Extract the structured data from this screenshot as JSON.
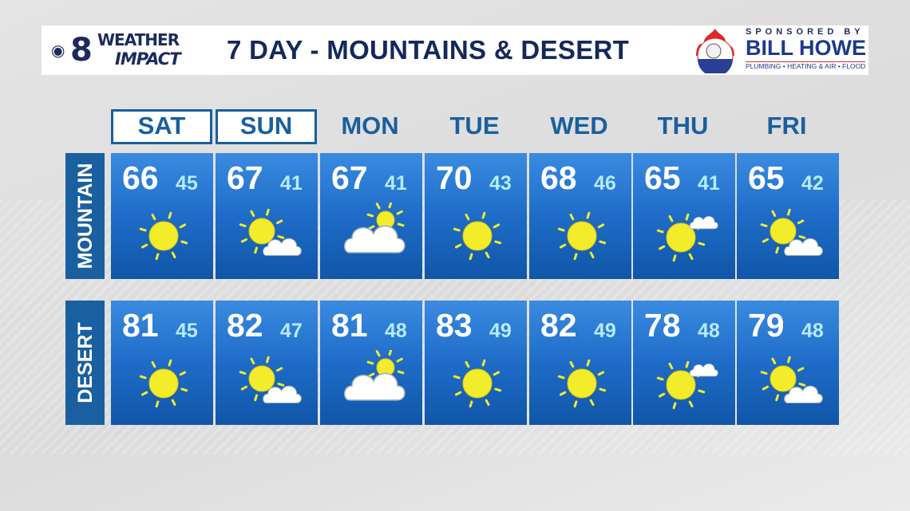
{
  "header": {
    "logo_text": [
      "8",
      "WEATHER",
      "IMPACT"
    ],
    "title": "7 DAY - MOUNTAINS & DESERT",
    "sponsor": {
      "label": "SPONSORED BY",
      "name": "BILL HOWE",
      "services": "PLUMBING • HEATING & AIR • FLOOD"
    }
  },
  "days": [
    {
      "label": "SAT",
      "selected": true
    },
    {
      "label": "SUN",
      "selected": true
    },
    {
      "label": "MON",
      "selected": false
    },
    {
      "label": "TUE",
      "selected": false
    },
    {
      "label": "WED",
      "selected": false
    },
    {
      "label": "THU",
      "selected": false
    },
    {
      "label": "FRI",
      "selected": false
    }
  ],
  "rows": [
    {
      "label": "MOUNTAIN",
      "forecast": [
        {
          "high": "66",
          "low": "45",
          "icon": "sunny"
        },
        {
          "high": "67",
          "low": "41",
          "icon": "partly-cloudy"
        },
        {
          "high": "67",
          "low": "41",
          "icon": "mostly-cloudy"
        },
        {
          "high": "70",
          "low": "43",
          "icon": "sunny"
        },
        {
          "high": "68",
          "low": "46",
          "icon": "sunny"
        },
        {
          "high": "65",
          "low": "41",
          "icon": "mostly-sunny"
        },
        {
          "high": "65",
          "low": "42",
          "icon": "partly-cloudy"
        }
      ]
    },
    {
      "label": "DESERT",
      "forecast": [
        {
          "high": "81",
          "low": "45",
          "icon": "sunny"
        },
        {
          "high": "82",
          "low": "47",
          "icon": "partly-cloudy"
        },
        {
          "high": "81",
          "low": "48",
          "icon": "mostly-cloudy"
        },
        {
          "high": "83",
          "low": "49",
          "icon": "sunny"
        },
        {
          "high": "82",
          "low": "49",
          "icon": "sunny"
        },
        {
          "high": "78",
          "low": "48",
          "icon": "mostly-sunny"
        },
        {
          "high": "79",
          "low": "48",
          "icon": "partly-cloudy"
        }
      ]
    }
  ],
  "colors": {
    "day_text": "#1a5f9f",
    "sun": "#f2ec2a",
    "low_temp": "#b5ecff"
  }
}
